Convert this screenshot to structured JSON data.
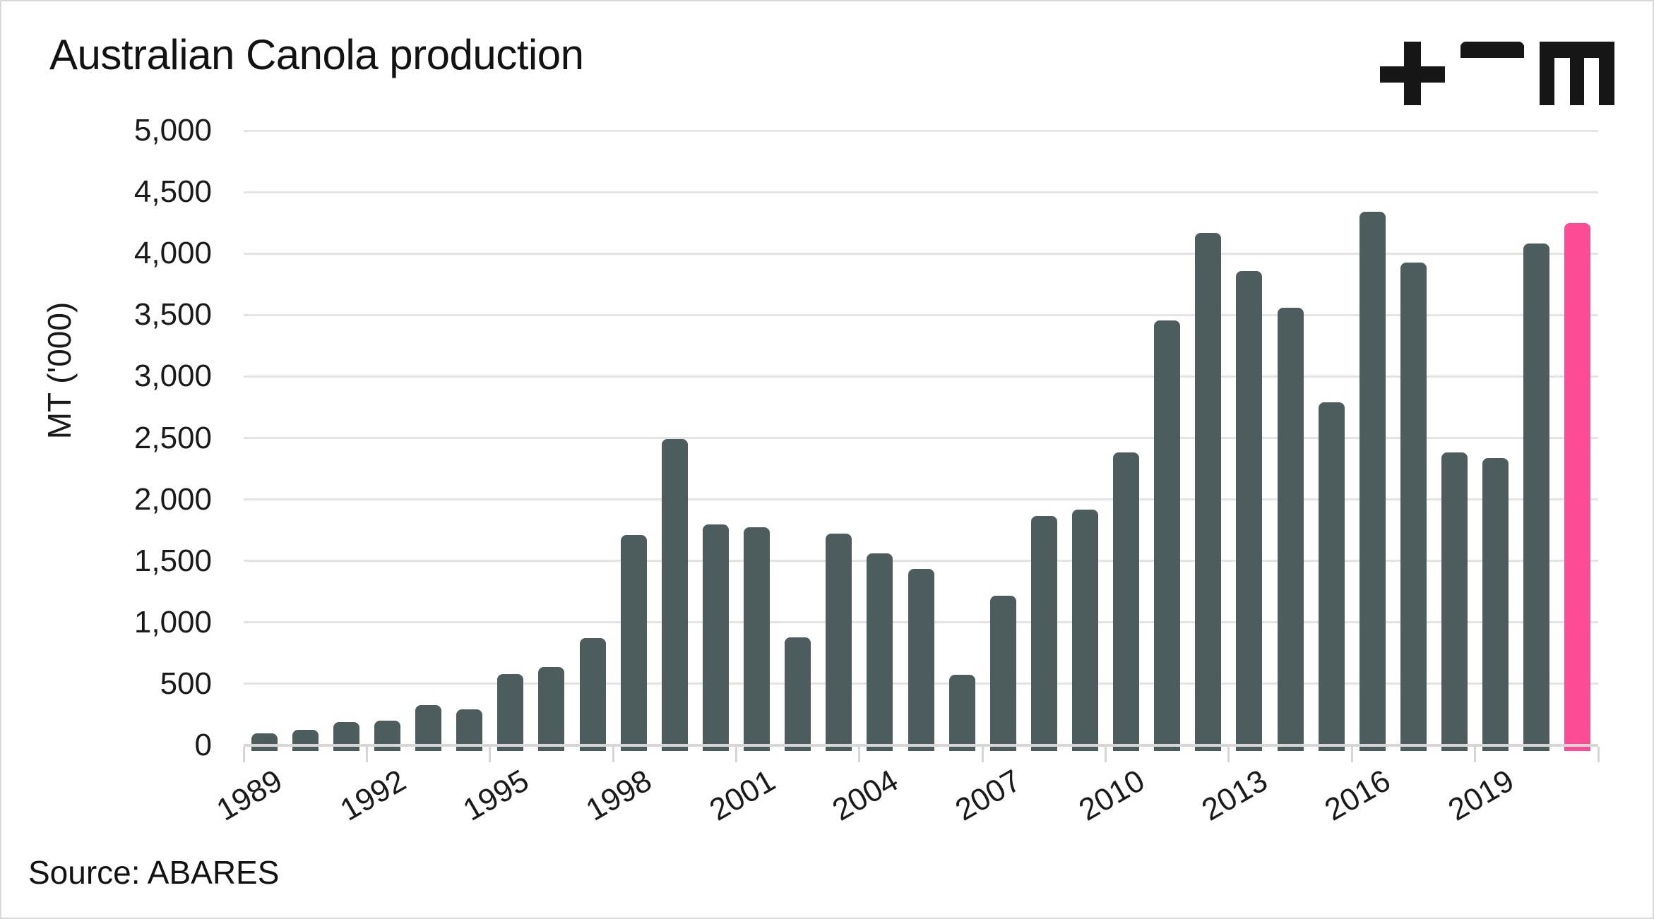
{
  "header": {
    "title": "Australian Canola production",
    "logo": "tem-logo"
  },
  "footer": {
    "source": "Source: ABARES"
  },
  "chart_data": {
    "type": "bar",
    "title": "Australian Canola production",
    "ylabel": "MT ('000)",
    "xlabel": "",
    "ylim": [
      0,
      5000
    ],
    "ytick_interval": 500,
    "ytick_labels": [
      "0",
      "500",
      "1,000",
      "1,500",
      "2,000",
      "2,500",
      "3,000",
      "3,500",
      "4,000",
      "4,500",
      "5,000"
    ],
    "xtick_labels": [
      "1989",
      "1992",
      "1995",
      "1998",
      "2001",
      "2004",
      "2007",
      "2010",
      "2013",
      "2016",
      "2019"
    ],
    "xtick_every": 3,
    "grid": "horizontal-only",
    "legend": "none",
    "years": [
      1989,
      1990,
      1991,
      1992,
      1993,
      1994,
      1995,
      1996,
      1997,
      1998,
      1999,
      2000,
      2001,
      2002,
      2003,
      2004,
      2005,
      2006,
      2007,
      2008,
      2009,
      2010,
      2011,
      2012,
      2013,
      2014,
      2015,
      2016,
      2017,
      2018,
      2019,
      2020,
      2021
    ],
    "values": [
      95,
      125,
      190,
      200,
      330,
      290,
      580,
      640,
      875,
      1710,
      2490,
      1795,
      1775,
      880,
      1725,
      1560,
      1435,
      575,
      1215,
      1865,
      1915,
      2380,
      3455,
      4170,
      3860,
      3560,
      2790,
      4340,
      3925,
      2380,
      2335,
      4080,
      4250
    ],
    "highlight_year": 2021,
    "bar_color": "#4D5C5C",
    "highlight_color": "#FB4C95",
    "gridline_color": "#E4E4E4",
    "axis_color": "#D6D6D6"
  }
}
